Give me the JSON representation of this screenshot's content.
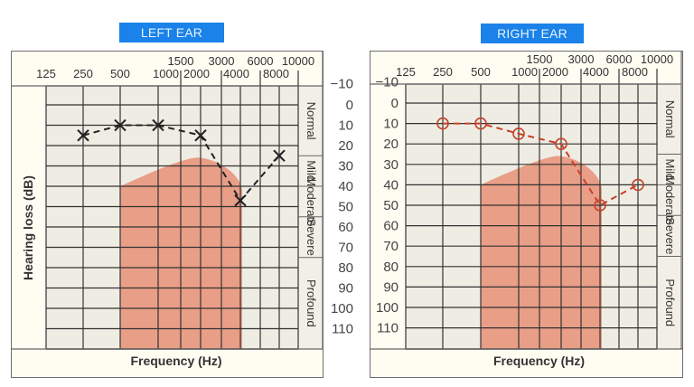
{
  "left_panel": {
    "title": "LEFT EAR",
    "xlabel": "Frequency (Hz)",
    "ylabel": "Hearing loss (dB)"
  },
  "right_panel": {
    "title": "RIGHT EAR",
    "xlabel": "Frequency (Hz)"
  },
  "freq_top_row": [
    "1500",
    "3000",
    "6000",
    "10000"
  ],
  "freq_bottom_row": [
    "125",
    "250",
    "500",
    "1000",
    "2000",
    "4000",
    "8000"
  ],
  "db_ticks": [
    "−10",
    "0",
    "10",
    "20",
    "30",
    "40",
    "50",
    "60",
    "70",
    "80",
    "90",
    "100",
    "110"
  ],
  "categories": [
    "Normal",
    "Mild",
    "Moderate",
    "Severe",
    "Profound"
  ],
  "colors": {
    "badge": "#1a82e8",
    "speech_area": "#e89a82",
    "left_marker": "#222222",
    "right_marker": "#c8412a",
    "grid_bg": "#efede3"
  },
  "chart_data": [
    {
      "type": "line",
      "title": "LEFT EAR",
      "xlabel": "Frequency (Hz)",
      "ylabel": "Hearing loss (dB)",
      "x": [
        250,
        500,
        1000,
        2000,
        4000,
        8000
      ],
      "series": [
        {
          "name": "Left ear (X)",
          "marker": "x",
          "style": "dashed",
          "values": [
            15,
            10,
            10,
            15,
            47,
            25
          ]
        }
      ],
      "xticks": [
        125,
        250,
        500,
        1000,
        1500,
        2000,
        3000,
        4000,
        6000,
        8000,
        10000
      ],
      "ylim": [
        -10,
        115
      ],
      "y_inverted": true,
      "bands": [
        {
          "label": "Normal",
          "range": [
            -10,
            25
          ]
        },
        {
          "label": "Mild",
          "range": [
            25,
            40
          ]
        },
        {
          "label": "Moderate",
          "range": [
            40,
            55
          ]
        },
        {
          "label": "Severe",
          "range": [
            55,
            75
          ]
        },
        {
          "label": "Profound",
          "range": [
            75,
            115
          ]
        }
      ],
      "shaded_region": "speech banana 500–4000 Hz, ~20–50 dB top edge to bottom"
    },
    {
      "type": "line",
      "title": "RIGHT EAR",
      "xlabel": "Frequency (Hz)",
      "ylabel": "Hearing loss (dB)",
      "x": [
        250,
        500,
        1000,
        2000,
        4000,
        8000
      ],
      "series": [
        {
          "name": "Right ear (O)",
          "marker": "circle",
          "style": "dashed",
          "color": "#c8412a",
          "values": [
            10,
            10,
            15,
            20,
            50,
            40
          ]
        }
      ],
      "xticks": [
        125,
        250,
        500,
        1000,
        1500,
        2000,
        3000,
        4000,
        6000,
        8000,
        10000
      ],
      "ylim": [
        -10,
        115
      ],
      "y_inverted": true
    }
  ]
}
